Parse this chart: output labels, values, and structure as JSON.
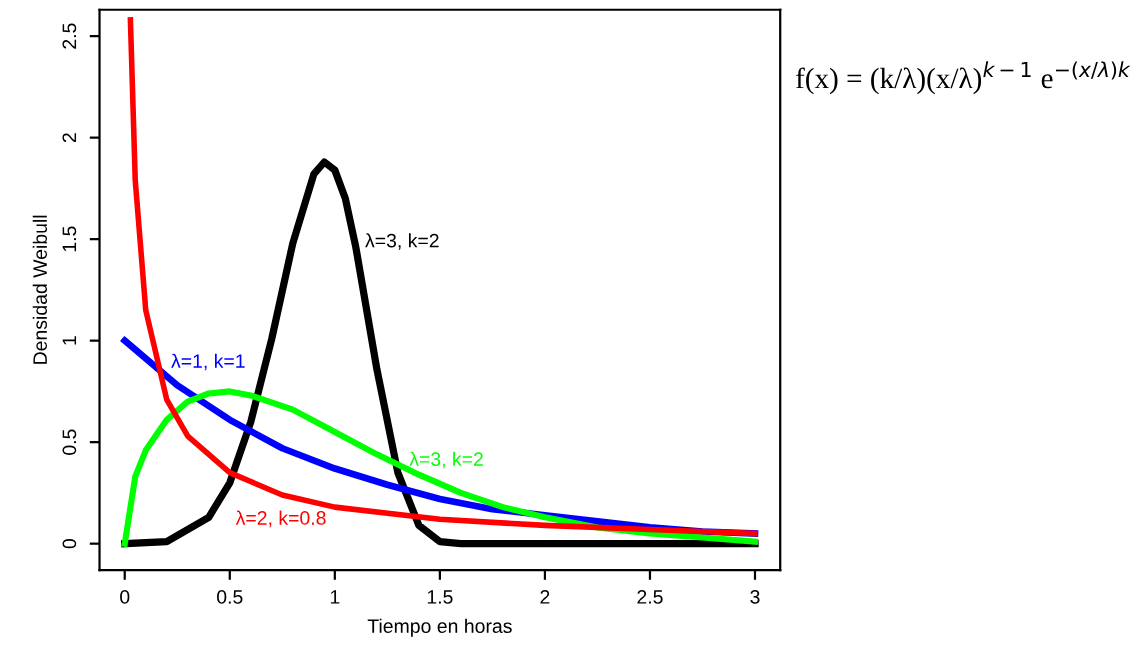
{
  "chart_data": {
    "type": "line",
    "xlabel": "Tiempo en horas",
    "ylabel": "Densidad Weibull",
    "xlim": [
      -0.12,
      3.12
    ],
    "ylim": [
      -0.13,
      2.63
    ],
    "xticks": [
      0,
      0.5,
      1,
      1.5,
      2,
      2.5,
      3
    ],
    "yticks": [
      0,
      0.5,
      1,
      1.5,
      2,
      2.5
    ],
    "grid": false,
    "legend": false,
    "marker": "none",
    "line_style": "solid",
    "series": [
      {
        "color": "#000000",
        "x": [
          0,
          0.2,
          0.4,
          0.5,
          0.6,
          0.7,
          0.8,
          0.9,
          0.95,
          1.0,
          1.05,
          1.1,
          1.2,
          1.3,
          1.4,
          1.5,
          1.6,
          2,
          3
        ],
        "values": [
          0,
          0.01,
          0.13,
          0.3,
          0.6,
          1.01,
          1.48,
          1.82,
          1.88,
          1.84,
          1.7,
          1.46,
          0.86,
          0.35,
          0.09,
          0.01,
          0,
          0,
          0
        ]
      },
      {
        "color": "#0000ff",
        "x": [
          0,
          0.25,
          0.5,
          0.75,
          1,
          1.25,
          1.5,
          1.75,
          2,
          2.25,
          2.5,
          2.75,
          3
        ],
        "values": [
          1.0,
          0.78,
          0.61,
          0.47,
          0.37,
          0.29,
          0.22,
          0.17,
          0.14,
          0.11,
          0.08,
          0.06,
          0.05
        ]
      },
      {
        "color": "#00ff00",
        "x": [
          0,
          0.05,
          0.1,
          0.2,
          0.3,
          0.4,
          0.5,
          0.6,
          0.8,
          1.0,
          1.2,
          1.4,
          1.6,
          1.8,
          2.0,
          2.25,
          2.5,
          2.75,
          3
        ],
        "values": [
          0,
          0.33,
          0.46,
          0.61,
          0.7,
          0.74,
          0.75,
          0.73,
          0.66,
          0.55,
          0.44,
          0.34,
          0.25,
          0.18,
          0.13,
          0.08,
          0.05,
          0.03,
          0.01
        ]
      },
      {
        "color": "#ff0000",
        "x": [
          0.027,
          0.05,
          0.1,
          0.2,
          0.3,
          0.5,
          0.75,
          1,
          1.5,
          2,
          2.5,
          3
        ],
        "values": [
          2.58,
          1.79,
          1.15,
          0.71,
          0.53,
          0.35,
          0.24,
          0.18,
          0.12,
          0.09,
          0.07,
          0.05
        ]
      }
    ],
    "annotations": [
      "λ=3, k=2",
      "λ=1, k=1",
      "λ=3, k=2",
      "λ=2, k=0.8",
      "f(x) = (k/λ)(x/λ)$^{k−1}$ e$^{−(x/λ)k}$"
    ]
  }
}
